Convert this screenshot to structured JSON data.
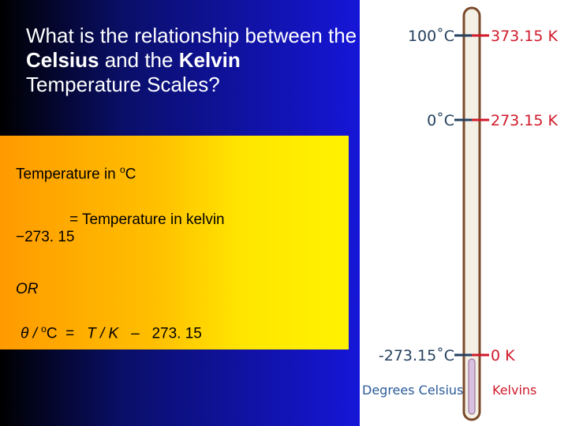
{
  "title": {
    "parts": [
      "What is the relationship between the ",
      "Celsius",
      " and the ",
      "Kelvin",
      " Temperature Scales?"
    ]
  },
  "box": {
    "line1": [
      "Temperature in ",
      "o",
      "C"
    ],
    "line2": "= Temperature in kelvin −273. 15",
    "line3": "OR",
    "line4": [
      "θ / ",
      "o",
      "C",
      "=",
      "T / K",
      "–",
      "273. 15"
    ]
  },
  "thermometer": {
    "marks": [
      {
        "celsius": "100˚C",
        "kelvin": "373.15 K"
      },
      {
        "celsius": "0˚C",
        "kelvin": "273.15 K"
      },
      {
        "celsius": "-273.15˚C",
        "kelvin": "0 K"
      }
    ],
    "celsius_caption": "Degrees Celsius",
    "kelvin_caption": "Kelvins"
  }
}
